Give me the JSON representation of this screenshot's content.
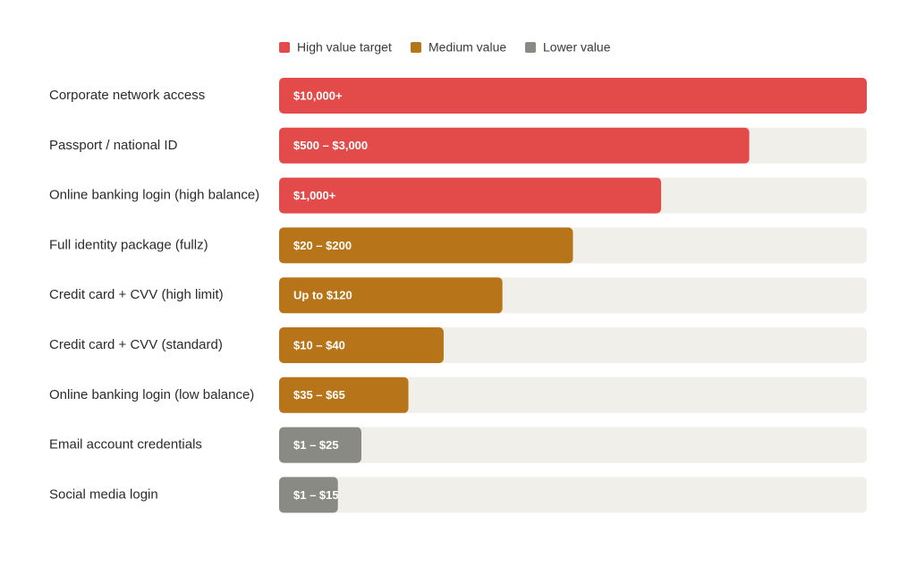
{
  "chart_data": {
    "type": "bar",
    "orientation": "horizontal",
    "legend": [
      {
        "name": "High value target",
        "color": "#e34b4b"
      },
      {
        "name": "Medium value",
        "color": "#b87418"
      },
      {
        "name": "Lower value",
        "color": "#8a8a84"
      }
    ],
    "categories": [
      "Corporate network access",
      "Passport / national ID",
      "Online banking login (high balance)",
      "Full identity package (fullz)",
      "Credit card + CVV (high limit)",
      "Credit card + CVV (standard)",
      "Online banking login (low balance)",
      "Email account credentials",
      "Social media login"
    ],
    "values": [
      100,
      80,
      65,
      50,
      38,
      28,
      22,
      14,
      10
    ],
    "price_ranges": [
      "$10,000+",
      "$500 – $3,000",
      "$1,000+",
      "$20 – $200",
      "Up to $120",
      "$10 – $40",
      "$35 – $65",
      "$1 – $25",
      "$1 – $15"
    ],
    "colors": [
      "#e34b4b",
      "#e34b4b",
      "#e34b4b",
      "#b87418",
      "#b87418",
      "#b87418",
      "#b87418",
      "#8a8a84",
      "#8a8a84"
    ],
    "track_color": "#f0efea",
    "xlim": [
      0,
      100
    ]
  }
}
